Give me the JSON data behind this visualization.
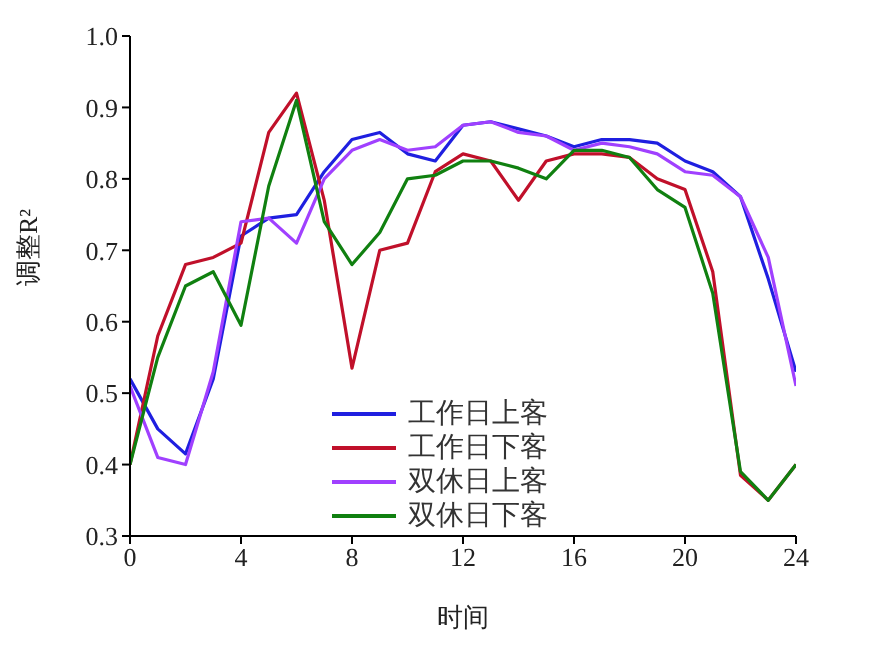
{
  "chart_data": {
    "type": "line",
    "xlabel": "时间",
    "ylabel": "调整R²",
    "x": [
      0,
      1,
      2,
      3,
      4,
      5,
      6,
      7,
      8,
      9,
      10,
      11,
      12,
      13,
      14,
      15,
      16,
      17,
      18,
      19,
      20,
      21,
      22,
      23,
      24
    ],
    "series": [
      {
        "name": "工作日上客",
        "color": "#1f1fe0",
        "values": [
          0.52,
          0.45,
          0.415,
          0.52,
          0.72,
          0.745,
          0.75,
          0.81,
          0.855,
          0.865,
          0.835,
          0.825,
          0.875,
          0.88,
          0.87,
          0.86,
          0.845,
          0.855,
          0.855,
          0.85,
          0.825,
          0.81,
          0.775,
          0.66,
          0.53
        ]
      },
      {
        "name": "工作日下客",
        "color": "#c0102a",
        "values": [
          0.4,
          0.58,
          0.68,
          0.69,
          0.71,
          0.865,
          0.92,
          0.77,
          0.535,
          0.7,
          0.71,
          0.81,
          0.835,
          0.825,
          0.77,
          0.825,
          0.835,
          0.835,
          0.83,
          0.8,
          0.785,
          0.67,
          0.385,
          0.35,
          0.4
        ]
      },
      {
        "name": "双休日上客",
        "color": "#a040ff",
        "values": [
          0.51,
          0.41,
          0.4,
          0.53,
          0.74,
          0.745,
          0.71,
          0.8,
          0.84,
          0.855,
          0.84,
          0.845,
          0.875,
          0.88,
          0.865,
          0.86,
          0.84,
          0.85,
          0.845,
          0.835,
          0.81,
          0.805,
          0.775,
          0.69,
          0.51
        ]
      },
      {
        "name": "双休日下客",
        "color": "#108010",
        "values": [
          0.4,
          0.55,
          0.65,
          0.67,
          0.595,
          0.79,
          0.91,
          0.74,
          0.68,
          0.725,
          0.8,
          0.805,
          0.825,
          0.825,
          0.815,
          0.8,
          0.84,
          0.84,
          0.83,
          0.785,
          0.76,
          0.64,
          0.39,
          0.35,
          0.4
        ]
      }
    ],
    "xlim": [
      0,
      24
    ],
    "xticks": [
      0,
      4,
      8,
      12,
      16,
      20,
      24
    ],
    "ylim": [
      0.3,
      1.0
    ],
    "yticks": [
      0.3,
      0.4,
      0.5,
      0.6,
      0.7,
      0.8,
      0.9,
      {
        "value": 1,
        "label": "1.0"
      }
    ],
    "grid": false,
    "legend": "bottom",
    "marker": "none",
    "line_style": "solid"
  }
}
